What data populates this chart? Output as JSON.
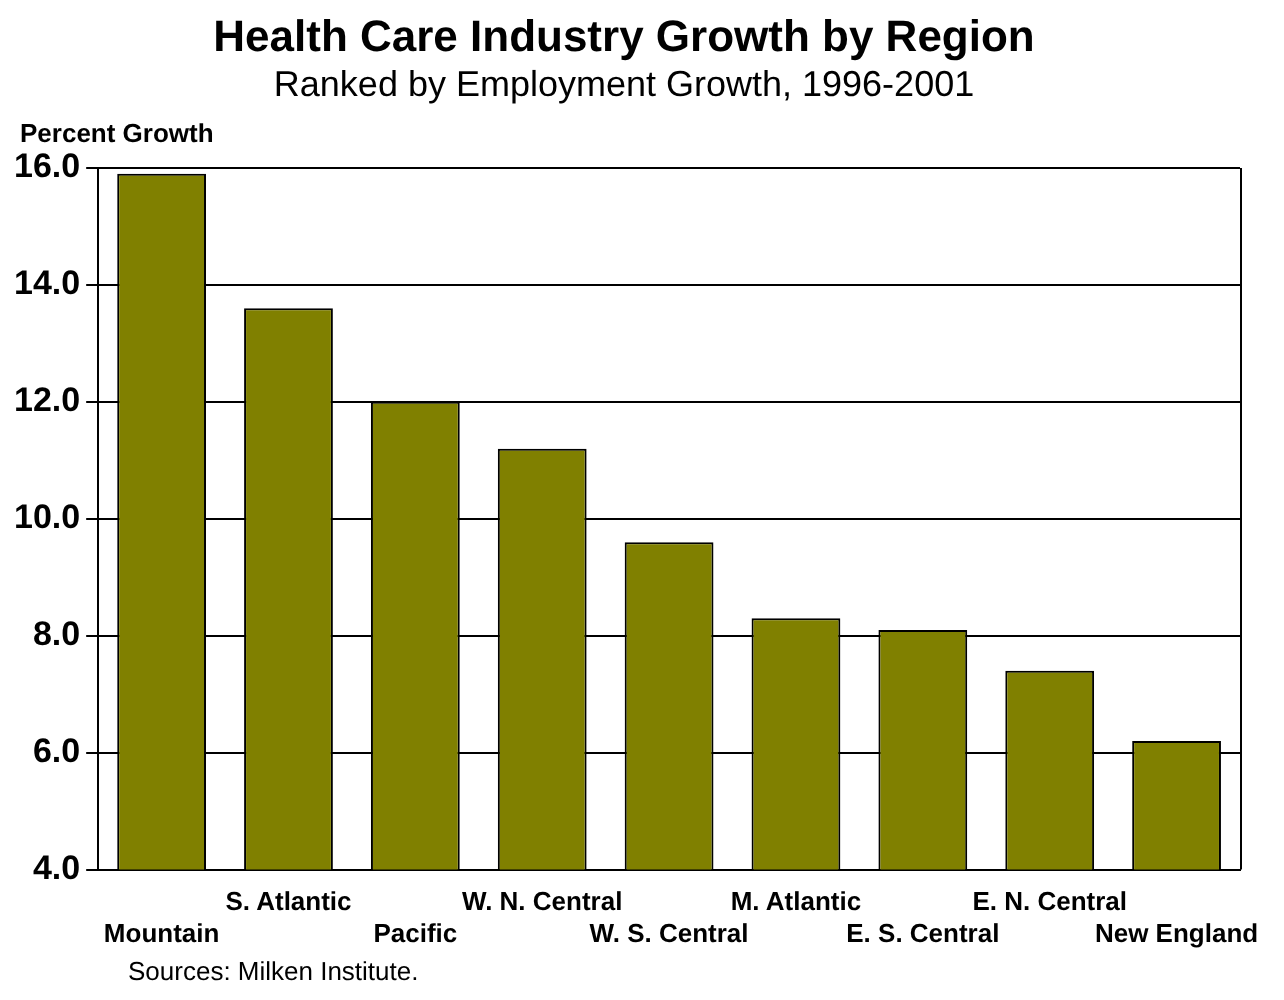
{
  "chart_data": {
    "type": "bar",
    "title": "Health Care Industry Growth by Region",
    "subtitle": "Ranked by Employment Growth, 1996-2001",
    "ylabel": "Percent Growth",
    "categories": [
      "Mountain",
      "S. Atlantic",
      "Pacific",
      "W. N. Central",
      "W. S. Central",
      "M. Atlantic",
      "E. S. Central",
      "E. N. Central",
      "New England"
    ],
    "values": [
      15.9,
      13.6,
      12.0,
      11.2,
      9.6,
      8.3,
      8.1,
      7.4,
      6.2
    ],
    "color": "#808000",
    "ylim": [
      4,
      16
    ],
    "yticks": [
      {
        "value": 4,
        "label": "4.0"
      },
      {
        "value": 6,
        "label": "6.0"
      },
      {
        "value": 8,
        "label": "8.0"
      },
      {
        "value": 10,
        "label": "10.0"
      },
      {
        "value": 12,
        "label": "12.0"
      },
      {
        "value": 14,
        "label": "14.0"
      },
      {
        "value": 16,
        "label": "16.0"
      }
    ],
    "grid": "y",
    "legend": false,
    "annotations": [
      "Sources: Milken Institute."
    ]
  }
}
